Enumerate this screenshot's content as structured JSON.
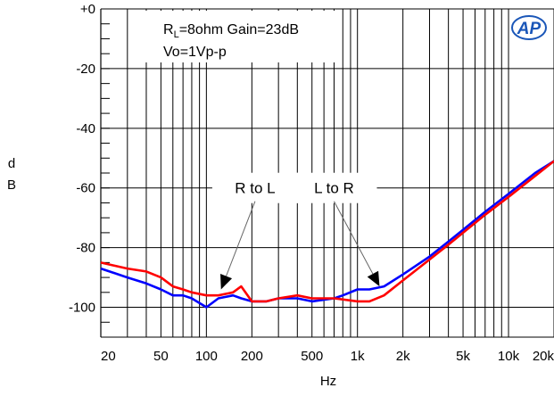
{
  "chart_data": {
    "type": "line",
    "title": "",
    "annotation_lines": [
      {
        "base": "R",
        "sub": "L",
        "rest": "=8ohm Gain=23dB"
      },
      {
        "text": "Vo=1Vp-p"
      }
    ],
    "logo_text": "AP",
    "xlabel": "Hz",
    "ylabel": "dB",
    "xscale": "log",
    "xlim": [
      20,
      20000
    ],
    "ylim": [
      -110,
      0
    ],
    "grid": true,
    "x_tick_labels": [
      {
        "value": 20,
        "label": "20"
      },
      {
        "value": 50,
        "label": "50"
      },
      {
        "value": 100,
        "label": "100"
      },
      {
        "value": 200,
        "label": "200"
      },
      {
        "value": 500,
        "label": "500"
      },
      {
        "value": 1000,
        "label": "1k"
      },
      {
        "value": 2000,
        "label": "2k"
      },
      {
        "value": 5000,
        "label": "5k"
      },
      {
        "value": 10000,
        "label": "10k"
      },
      {
        "value": 20000,
        "label": "20k"
      }
    ],
    "y_tick_labels": [
      {
        "value": 0,
        "label": "+0"
      },
      {
        "value": -20,
        "label": "-20"
      },
      {
        "value": -40,
        "label": "-40"
      },
      {
        "value": -60,
        "label": "-60"
      },
      {
        "value": -80,
        "label": "-80"
      },
      {
        "value": -100,
        "label": "-100"
      }
    ],
    "series": [
      {
        "label": "R to L",
        "color": "#ff0000",
        "x": [
          20,
          30,
          40,
          50,
          60,
          70,
          80,
          100,
          120,
          150,
          170,
          200,
          250,
          300,
          400,
          500,
          700,
          1000,
          1200,
          1500,
          2000,
          3000,
          4000,
          5000,
          7000,
          10000,
          15000,
          20000
        ],
        "y": [
          -85,
          -87,
          -88,
          -90,
          -93,
          -94,
          -95,
          -96,
          -96,
          -95,
          -93,
          -98,
          -98,
          -97,
          -96,
          -97,
          -97,
          -98,
          -98,
          -96,
          -91,
          -84,
          -79,
          -75,
          -69,
          -63,
          -56,
          -51
        ]
      },
      {
        "label": "L to R",
        "color": "#0000ff",
        "x": [
          20,
          30,
          40,
          50,
          60,
          70,
          80,
          100,
          120,
          150,
          170,
          200,
          250,
          300,
          400,
          500,
          700,
          800,
          1000,
          1200,
          1500,
          2000,
          3000,
          4000,
          5000,
          7000,
          10000,
          15000,
          20000
        ],
        "y": [
          -87,
          -90,
          -92,
          -94,
          -96,
          -96,
          -97,
          -100,
          -97,
          -96,
          -97,
          -98,
          -98,
          -97,
          -97,
          -98,
          -97,
          -96,
          -94,
          -94,
          -93,
          -89,
          -83,
          -78,
          -74,
          -68,
          -62,
          -55,
          -51
        ]
      }
    ],
    "callouts": [
      {
        "text": "R to L",
        "label_at": {
          "x": 210,
          "y": -60
        },
        "points_to": {
          "x": 125,
          "y": -94
        }
      },
      {
        "text": "L to R",
        "label_at": {
          "x": 700,
          "y": -60
        },
        "points_to": {
          "x": 1400,
          "y": -93
        }
      }
    ]
  }
}
